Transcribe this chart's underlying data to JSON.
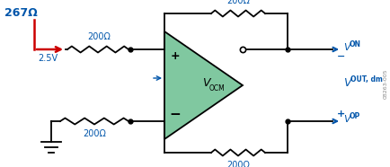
{
  "bg_color": "#ffffff",
  "green_fill": "#80c8a0",
  "line_color": "#000000",
  "blue_color": "#0055aa",
  "red_color": "#cc0000",
  "gray_color": "#888888",
  "figsize": [
    4.35,
    1.86
  ],
  "dpi": 100,
  "267_label": "267Ω",
  "v25_label": "2.5V",
  "code_label": "08263-005",
  "r200": "200Ω",
  "vocm_v": "V",
  "vocm_sub": "OCM",
  "plus": "+",
  "minus": "−",
  "von_v": "V",
  "von_sub": "ON",
  "vop_v": "V",
  "vop_sub": "OP",
  "vout_v": "V",
  "vout_sub": "OUT, dm"
}
